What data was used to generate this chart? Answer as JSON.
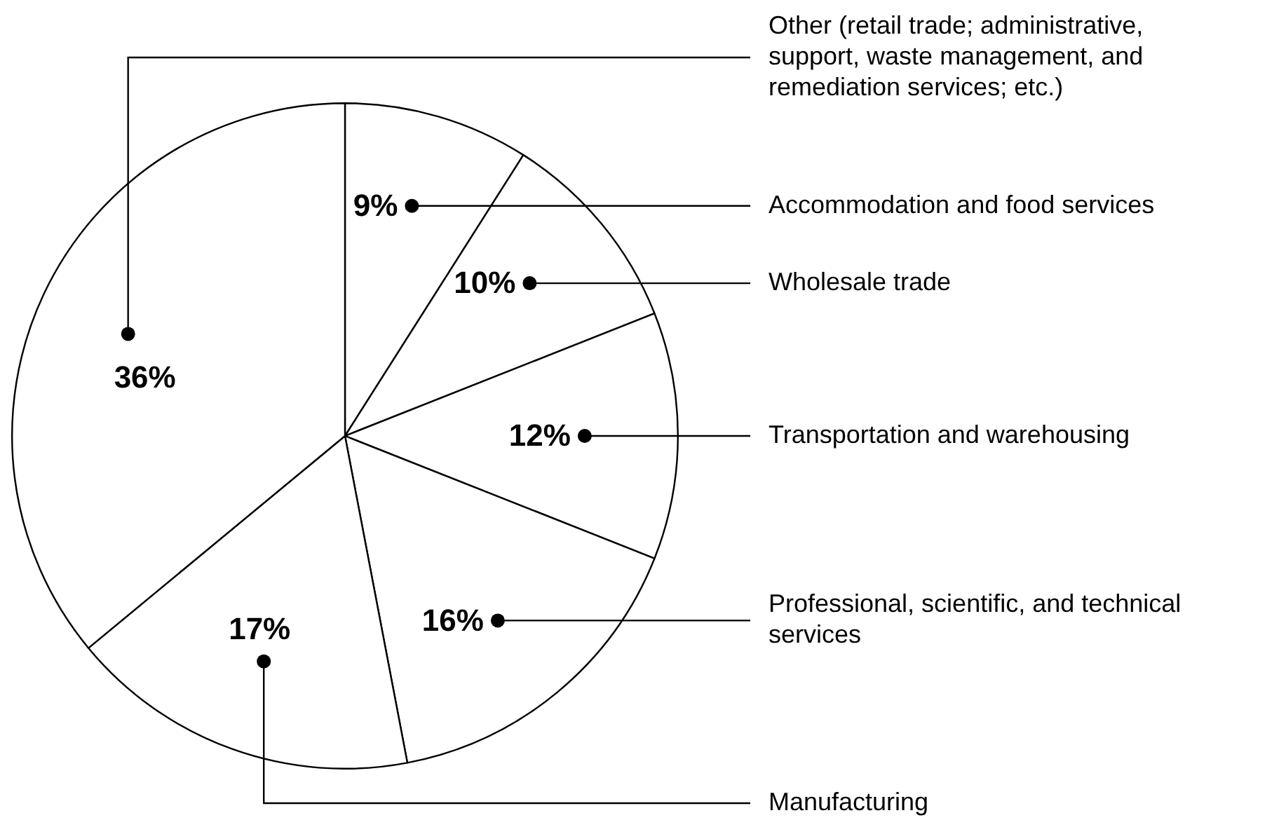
{
  "chart_data": {
    "type": "pie",
    "categories": [
      "Accommodation and food services",
      "Wholesale trade",
      "Transportation and warehousing",
      "Professional, scientific, and technical services",
      "Manufacturing",
      "Other (retail trade; administrative, support, waste management, and remediation services; etc.)"
    ],
    "values": [
      9,
      10,
      12,
      16,
      17,
      36
    ],
    "colors": [
      "#ffffff",
      "#ffffff",
      "#ffffff",
      "#ffffff",
      "#ffffff",
      "#ffffff"
    ],
    "value_labels": [
      "9%",
      "10%",
      "12%",
      "16%",
      "17%",
      "36%"
    ]
  }
}
